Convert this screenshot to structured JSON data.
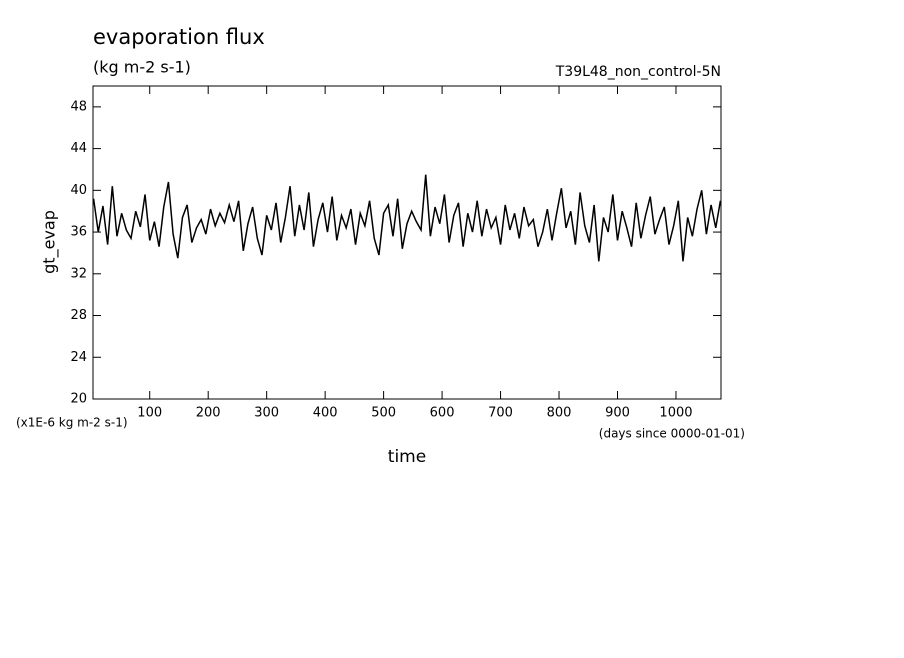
{
  "chart_data": {
    "type": "line",
    "title": "evaporation flux",
    "subtitle": "(kg m-2 s-1)",
    "annotation": "T39L48_non_control-5N",
    "ylabel": "gt_evap",
    "xlabel": "time",
    "y_unit": "(x1E-6 kg m-2 s-1)",
    "x_unit": "(days since 0000-01-01)",
    "x": [
      4,
      12,
      20,
      28,
      36,
      44,
      52,
      60,
      68,
      76,
      84,
      92,
      100,
      108,
      116,
      124,
      132,
      140,
      148,
      156,
      164,
      172,
      180,
      188,
      196,
      204,
      212,
      220,
      228,
      236,
      244,
      252,
      260,
      268,
      276,
      284,
      292,
      300,
      308,
      316,
      324,
      332,
      340,
      348,
      356,
      364,
      372,
      380,
      388,
      396,
      404,
      412,
      420,
      428,
      436,
      444,
      452,
      460,
      468,
      476,
      484,
      492,
      500,
      508,
      516,
      524,
      532,
      540,
      548,
      556,
      564,
      572,
      580,
      588,
      596,
      604,
      612,
      620,
      628,
      636,
      644,
      652,
      660,
      668,
      676,
      684,
      692,
      700,
      708,
      716,
      724,
      732,
      740,
      748,
      756,
      764,
      772,
      780,
      788,
      796,
      804,
      812,
      820,
      828,
      836,
      844,
      852,
      860,
      868,
      876,
      884,
      892,
      900,
      908,
      916,
      924,
      932,
      940,
      948,
      956,
      964,
      972,
      980,
      988,
      996,
      1004,
      1012,
      1020,
      1028,
      1036,
      1044,
      1052,
      1060,
      1068,
      1076
    ],
    "series": [
      {
        "color": "#000000",
        "values": [
          39.2,
          36.0,
          38.5,
          34.8,
          40.4,
          35.6,
          37.8,
          36.2,
          35.4,
          38.0,
          36.5,
          39.6,
          35.2,
          37.0,
          34.6,
          38.4,
          40.8,
          35.8,
          33.5,
          37.4,
          38.6,
          35.0,
          36.4,
          37.2,
          35.8,
          38.2,
          36.6,
          37.8,
          36.9,
          38.6,
          37.0,
          39.0,
          34.2,
          36.8,
          38.4,
          35.4,
          33.8,
          37.6,
          36.2,
          38.8,
          35.0,
          37.4,
          40.4,
          35.6,
          38.6,
          36.2,
          39.8,
          34.6,
          37.2,
          38.8,
          36.0,
          39.4,
          35.2,
          37.6,
          36.4,
          38.2,
          34.8,
          37.8,
          36.6,
          39.0,
          35.4,
          33.8,
          37.8,
          38.6,
          35.6,
          39.2,
          34.4,
          36.8,
          38.0,
          37.0,
          36.2,
          41.5,
          35.6,
          38.4,
          36.8,
          39.6,
          35.0,
          37.6,
          38.8,
          34.6,
          37.8,
          36.0,
          39.0,
          35.6,
          38.2,
          36.4,
          37.4,
          34.8,
          38.6,
          36.2,
          37.8,
          35.4,
          38.4,
          36.6,
          37.2,
          34.6,
          36.0,
          38.2,
          35.2,
          37.8,
          40.2,
          36.4,
          38.0,
          34.8,
          39.8,
          36.6,
          35.0,
          38.6,
          33.2,
          37.4,
          36.0,
          39.6,
          35.2,
          38.0,
          36.4,
          34.6,
          38.8,
          35.4,
          37.6,
          39.4,
          35.8,
          37.2,
          38.4,
          34.8,
          36.6,
          39.0,
          33.2,
          37.4,
          35.6,
          38.2,
          40.0,
          35.8,
          38.6,
          36.4,
          39.0
        ]
      }
    ],
    "xlim": [
      3,
      1077
    ],
    "ylim": [
      20,
      50
    ],
    "xticks": [
      100,
      200,
      300,
      400,
      500,
      600,
      700,
      800,
      900,
      1000
    ],
    "yticks": [
      20,
      24,
      28,
      32,
      36,
      40,
      44,
      48
    ]
  }
}
